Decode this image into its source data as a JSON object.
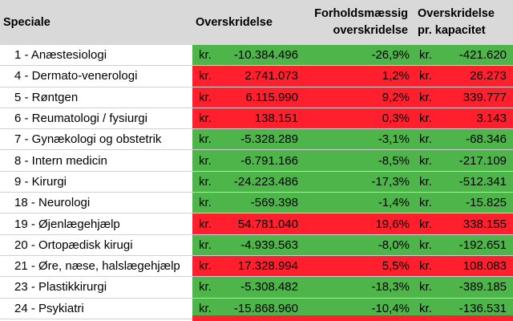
{
  "headers": {
    "speciale": "Speciale",
    "overskridelse": "Overskridelse",
    "forholdsmaessig_line1": "Forholdsmæssig",
    "forholdsmaessig_line2": "overskridelse",
    "kapacitet_line1": "Overskridelse",
    "kapacitet_line2": "pr. kapacitet"
  },
  "currency_label": "kr.",
  "colors": {
    "negative": "#4eb54a",
    "positive": "#ff1f2d",
    "header": "#d9d9d9"
  },
  "rows": [
    {
      "speciale": "1 - Anæstesiologi",
      "overskridelse": "-10.384.496",
      "pct": "-26,9%",
      "kapacitet": "-421.620",
      "sign": "neg"
    },
    {
      "speciale": "4 - Dermato-venerologi",
      "overskridelse": "2.741.073",
      "pct": "1,2%",
      "kapacitet": "26.273",
      "sign": "pos"
    },
    {
      "speciale": "5 - Røntgen",
      "overskridelse": "6.115.990",
      "pct": "9,2%",
      "kapacitet": "339.777",
      "sign": "pos"
    },
    {
      "speciale": "6 - Reumatologi / fysiurgi",
      "overskridelse": "138.151",
      "pct": "0,3%",
      "kapacitet": "3.143",
      "sign": "pos"
    },
    {
      "speciale": "7 - Gynækologi og obstetrik",
      "overskridelse": "-5.328.289",
      "pct": "-3,1%",
      "kapacitet": "-68.346",
      "sign": "neg"
    },
    {
      "speciale": "8 - Intern medicin",
      "overskridelse": "-6.791.166",
      "pct": "-8,5%",
      "kapacitet": "-217.109",
      "sign": "neg"
    },
    {
      "speciale": "9 - Kirurgi",
      "overskridelse": "-24.223.486",
      "pct": "-17,3%",
      "kapacitet": "-512.341",
      "sign": "neg"
    },
    {
      "speciale": "18 - Neurologi",
      "overskridelse": "-569.398",
      "pct": "-1,4%",
      "kapacitet": "-15.825",
      "sign": "neg"
    },
    {
      "speciale": "19 - Øjenlægehjælp",
      "overskridelse": "54.781.040",
      "pct": "19,6%",
      "kapacitet": "338.155",
      "sign": "pos"
    },
    {
      "speciale": "20 - Ortopædisk kirugi",
      "overskridelse": "-4.939.563",
      "pct": "-8,0%",
      "kapacitet": "-192.651",
      "sign": "neg"
    },
    {
      "speciale": "21 - Øre, næse, halslægehjælp",
      "overskridelse": "17.328.994",
      "pct": "5,5%",
      "kapacitet": "108.083",
      "sign": "pos"
    },
    {
      "speciale": "23 - Plastikkirurgi",
      "overskridelse": "-5.308.482",
      "pct": "-18,3%",
      "kapacitet": "-389.185",
      "sign": "neg"
    },
    {
      "speciale": "24 - Psykiatri",
      "overskridelse": "-15.868.960",
      "pct": "-10,4%",
      "kapacitet": "-136.531",
      "sign": "neg"
    }
  ]
}
